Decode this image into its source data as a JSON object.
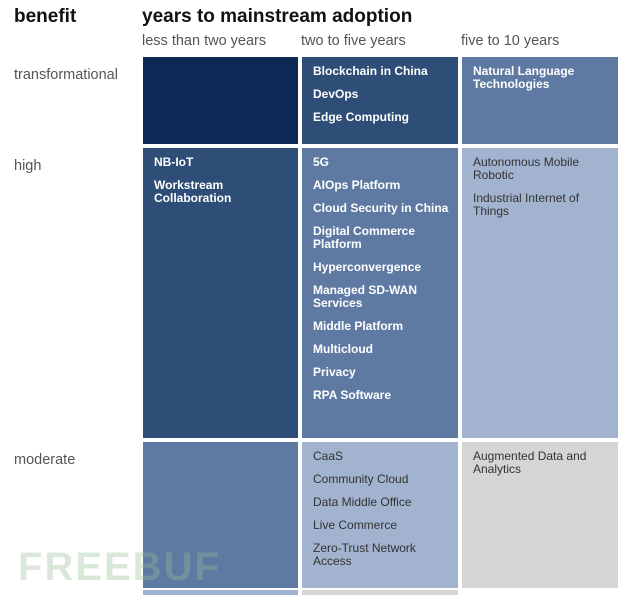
{
  "header": {
    "benefit": "benefit",
    "adoption": "years to mainstream adoption"
  },
  "columns": [
    "less than two years",
    "two to five years",
    "five to 10 years"
  ],
  "rows": [
    "transformational",
    "high",
    "moderate"
  ],
  "colors": {
    "navy": "#0d2a57",
    "dark_blue": "#2e4d77",
    "mid_blue": "#5f7aa2",
    "light_blue": "#a2b3cf",
    "gray": "#d5d5d5"
  },
  "cells": {
    "transformational_lt2": [],
    "transformational_2to5": [
      "Blockchain in China",
      "DevOps",
      "Edge Computing"
    ],
    "transformational_5to10": [
      "Natural Language Technologies"
    ],
    "high_lt2": [
      "NB-IoT",
      "Workstream Collaboration"
    ],
    "high_2to5": [
      "5G",
      "AIOps Platform",
      "Cloud Security in China",
      "Digital Commerce Platform",
      "Hyperconvergence",
      "Managed SD-WAN Services",
      "Middle Platform",
      "Multicloud",
      "Privacy",
      "RPA Software"
    ],
    "high_5to10": [
      "Autonomous Mobile Robotic",
      "Industrial Internet of Things"
    ],
    "moderate_lt2": [],
    "moderate_2to5": [
      "CaaS",
      "Community Cloud",
      "Data Middle Office",
      "Live Commerce",
      "Zero-Trust Network Access"
    ],
    "moderate_5to10": [
      "Augmented Data and Analytics"
    ]
  },
  "watermark": "FREEBUF"
}
